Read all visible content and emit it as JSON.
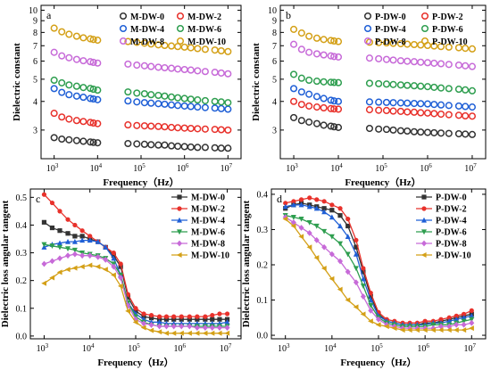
{
  "figure": {
    "panels": [
      "a",
      "b",
      "c",
      "d"
    ]
  },
  "chart_data": [
    {
      "panel": "a",
      "type": "scatter",
      "xlabel": "Frequency（Hz）",
      "ylabel": "Dielectric constant",
      "xscale": "log",
      "yscale": "log",
      "xlim": [
        500,
        20000000
      ],
      "ylim": [
        2.25,
        10.5
      ],
      "xticks": [
        "10^3",
        "10^4",
        "10^5",
        "10^6",
        "10^7"
      ],
      "yticks": [
        3,
        4,
        5,
        6,
        7,
        8,
        9,
        10
      ],
      "legend": {
        "placement": "top-right",
        "columns": 2
      },
      "x": [
        1000,
        1500,
        2200,
        3300,
        4700,
        6800,
        8000,
        10000,
        50000,
        80000,
        120000,
        170000,
        250000,
        350000,
        500000,
        700000,
        1000000,
        1400000,
        2000000,
        3000000,
        5000000,
        7000000,
        10000000
      ],
      "series": [
        {
          "name": "M-DW-0",
          "color": "#333333",
          "values": [
            2.78,
            2.74,
            2.72,
            2.7,
            2.68,
            2.66,
            2.65,
            2.64,
            2.62,
            2.61,
            2.6,
            2.59,
            2.58,
            2.58,
            2.56,
            2.55,
            2.54,
            2.53,
            2.52,
            2.52,
            2.51,
            2.5,
            2.5
          ]
        },
        {
          "name": "M-DW-2",
          "color": "#e8312b",
          "values": [
            3.55,
            3.42,
            3.35,
            3.3,
            3.27,
            3.24,
            3.22,
            3.2,
            3.16,
            3.14,
            3.13,
            3.12,
            3.11,
            3.1,
            3.08,
            3.07,
            3.06,
            3.05,
            3.04,
            3.03,
            3.02,
            3.01,
            3.0
          ]
        },
        {
          "name": "M-DW-4",
          "color": "#1f5fd6",
          "values": [
            4.55,
            4.38,
            4.28,
            4.22,
            4.17,
            4.12,
            4.1,
            4.07,
            4.02,
            3.98,
            3.95,
            3.93,
            3.91,
            3.89,
            3.86,
            3.84,
            3.82,
            3.8,
            3.78,
            3.76,
            3.74,
            3.72,
            3.7
          ]
        },
        {
          "name": "M-DW-6",
          "color": "#2e9e4f",
          "values": [
            4.95,
            4.82,
            4.72,
            4.66,
            4.6,
            4.56,
            4.52,
            4.48,
            4.4,
            4.35,
            4.32,
            4.28,
            4.25,
            4.22,
            4.18,
            4.15,
            4.12,
            4.09,
            4.06,
            4.03,
            4.0,
            3.98,
            3.95
          ]
        },
        {
          "name": "M-DW-8",
          "color": "#c76ad8",
          "values": [
            6.55,
            6.32,
            6.2,
            6.1,
            6.02,
            5.96,
            5.92,
            5.88,
            5.82,
            5.76,
            5.72,
            5.68,
            5.64,
            5.61,
            5.58,
            5.54,
            5.51,
            5.48,
            5.44,
            5.4,
            5.36,
            5.32,
            5.28
          ]
        },
        {
          "name": "M-DW-10",
          "color": "#d4a017",
          "values": [
            8.35,
            8.05,
            7.85,
            7.7,
            7.58,
            7.5,
            7.45,
            7.4,
            7.3,
            7.24,
            7.18,
            7.12,
            7.06,
            7.02,
            6.98,
            6.94,
            6.9,
            6.86,
            6.8,
            6.75,
            6.7,
            6.65,
            6.6
          ]
        }
      ]
    },
    {
      "panel": "b",
      "type": "scatter",
      "xlabel": "Frequency（Hz）",
      "ylabel": "Dielectric constant",
      "xscale": "log",
      "yscale": "log",
      "xlim": [
        500,
        20000000
      ],
      "ylim": [
        2.25,
        10.5
      ],
      "xticks": [
        "10^3",
        "10^4",
        "10^5",
        "10^6",
        "10^7"
      ],
      "yticks": [
        3,
        4,
        5,
        6,
        7,
        8,
        9,
        10
      ],
      "legend": {
        "placement": "top-right",
        "columns": 2
      },
      "x": [
        1000,
        1500,
        2200,
        3300,
        4700,
        6800,
        8000,
        10000,
        50000,
        80000,
        120000,
        170000,
        250000,
        350000,
        500000,
        700000,
        1000000,
        1400000,
        2000000,
        3000000,
        5000000,
        7000000,
        10000000
      ],
      "series": [
        {
          "name": "P-DW-0",
          "color": "#333333",
          "values": [
            3.4,
            3.3,
            3.25,
            3.2,
            3.15,
            3.12,
            3.1,
            3.08,
            3.05,
            3.03,
            3.02,
            3.0,
            2.98,
            2.97,
            2.95,
            2.94,
            2.93,
            2.92,
            2.91,
            2.9,
            2.89,
            2.88,
            2.87
          ]
        },
        {
          "name": "P-DW-2",
          "color": "#e8312b",
          "values": [
            4.0,
            3.88,
            3.82,
            3.78,
            3.75,
            3.72,
            3.71,
            3.7,
            3.68,
            3.66,
            3.65,
            3.63,
            3.62,
            3.6,
            3.59,
            3.57,
            3.56,
            3.54,
            3.52,
            3.5,
            3.48,
            3.46,
            3.45
          ]
        },
        {
          "name": "P-DW-4",
          "color": "#1f5fd6",
          "values": [
            4.55,
            4.4,
            4.3,
            4.2,
            4.12,
            4.05,
            4.02,
            4.0,
            3.98,
            3.97,
            3.96,
            3.95,
            3.94,
            3.93,
            3.92,
            3.91,
            3.9,
            3.88,
            3.86,
            3.84,
            3.82,
            3.8,
            3.78
          ]
        },
        {
          "name": "P-DW-6",
          "color": "#2e9e4f",
          "values": [
            5.25,
            5.05,
            4.95,
            4.9,
            4.87,
            4.85,
            4.84,
            4.83,
            4.8,
            4.78,
            4.76,
            4.74,
            4.72,
            4.7,
            4.68,
            4.66,
            4.64,
            4.61,
            4.58,
            4.55,
            4.52,
            4.49,
            4.45
          ]
        },
        {
          "name": "P-DW-8",
          "color": "#c76ad8",
          "values": [
            7.1,
            6.75,
            6.55,
            6.45,
            6.38,
            6.32,
            6.28,
            6.25,
            6.18,
            6.14,
            6.1,
            6.06,
            6.02,
            5.99,
            5.96,
            5.93,
            5.9,
            5.87,
            5.84,
            5.8,
            5.76,
            5.72,
            5.68
          ]
        },
        {
          "name": "P-DW-10",
          "color": "#d4a017",
          "values": [
            8.25,
            7.95,
            7.7,
            7.55,
            7.45,
            7.38,
            7.34,
            7.3,
            7.25,
            7.22,
            7.2,
            7.17,
            7.14,
            7.11,
            7.08,
            7.05,
            7.02,
            6.98,
            6.94,
            6.9,
            6.86,
            6.82,
            6.78
          ]
        }
      ]
    },
    {
      "panel": "c",
      "type": "line",
      "xlabel": "Frequency（Hz）",
      "ylabel": "Dielectric loss angular tangent",
      "xscale": "log",
      "xlim": [
        500,
        20000000
      ],
      "ylim": [
        -0.01,
        0.53
      ],
      "xticks": [
        "10^3",
        "10^4",
        "10^5",
        "10^6",
        "10^7"
      ],
      "yticks": [
        0.0,
        0.1,
        0.2,
        0.3,
        0.4,
        0.5
      ],
      "legend": {
        "placement": "top-right",
        "columns": 1
      },
      "x": [
        1000,
        1500,
        2200,
        3300,
        4700,
        6800,
        10000,
        15000,
        22000,
        33000,
        47000,
        68000,
        100000,
        150000,
        220000,
        330000,
        470000,
        680000,
        1000000,
        1500000,
        2200000,
        3300000,
        4700000,
        6800000,
        10000000
      ],
      "series": [
        {
          "name": "M-DW-0",
          "color": "#333333",
          "marker": "square",
          "values": [
            0.41,
            0.39,
            0.38,
            0.37,
            0.36,
            0.36,
            0.35,
            0.34,
            0.32,
            0.29,
            0.25,
            0.14,
            0.09,
            0.07,
            0.065,
            0.06,
            0.06,
            0.06,
            0.06,
            0.06,
            0.06,
            0.06,
            0.06,
            0.06,
            0.06
          ]
        },
        {
          "name": "M-DW-2",
          "color": "#e8312b",
          "marker": "circle",
          "values": [
            0.51,
            0.48,
            0.45,
            0.42,
            0.4,
            0.38,
            0.36,
            0.34,
            0.32,
            0.3,
            0.26,
            0.15,
            0.1,
            0.08,
            0.075,
            0.07,
            0.07,
            0.07,
            0.07,
            0.07,
            0.07,
            0.07,
            0.075,
            0.08,
            0.08
          ]
        },
        {
          "name": "M-DW-4",
          "color": "#1f5fd6",
          "marker": "triangle",
          "values": [
            0.32,
            0.33,
            0.335,
            0.34,
            0.34,
            0.345,
            0.345,
            0.34,
            0.32,
            0.28,
            0.22,
            0.12,
            0.08,
            0.06,
            0.05,
            0.05,
            0.045,
            0.045,
            0.045,
            0.045,
            0.045,
            0.045,
            0.045,
            0.045,
            0.05
          ]
        },
        {
          "name": "M-DW-6",
          "color": "#2e9e4f",
          "marker": "triangle-down",
          "values": [
            0.33,
            0.325,
            0.32,
            0.315,
            0.31,
            0.3,
            0.295,
            0.29,
            0.28,
            0.26,
            0.22,
            0.12,
            0.07,
            0.05,
            0.04,
            0.035,
            0.035,
            0.035,
            0.035,
            0.035,
            0.035,
            0.035,
            0.035,
            0.035,
            0.035
          ]
        },
        {
          "name": "M-DW-8",
          "color": "#c76ad8",
          "marker": "diamond",
          "values": [
            0.26,
            0.27,
            0.28,
            0.29,
            0.295,
            0.29,
            0.29,
            0.285,
            0.275,
            0.25,
            0.21,
            0.11,
            0.06,
            0.045,
            0.04,
            0.035,
            0.035,
            0.035,
            0.035,
            0.035,
            0.03,
            0.03,
            0.03,
            0.03,
            0.03
          ]
        },
        {
          "name": "M-DW-10",
          "color": "#d4a017",
          "marker": "triangle-left",
          "values": [
            0.19,
            0.21,
            0.23,
            0.24,
            0.245,
            0.25,
            0.255,
            0.25,
            0.24,
            0.22,
            0.18,
            0.09,
            0.05,
            0.03,
            0.02,
            0.015,
            0.01,
            0.01,
            0.01,
            0.01,
            0.01,
            0.01,
            0.01,
            0.01,
            0.01
          ]
        }
      ]
    },
    {
      "panel": "d",
      "type": "line",
      "xlabel": "Frequency（Hz）",
      "ylabel": "Dielectric loss angular tangent",
      "xscale": "log",
      "xlim": [
        500,
        20000000
      ],
      "ylim": [
        -0.01,
        0.415
      ],
      "xticks": [
        "10^3",
        "10^4",
        "10^5",
        "10^6",
        "10^7"
      ],
      "yticks": [
        0.0,
        0.1,
        0.2,
        0.3,
        0.4
      ],
      "legend": {
        "placement": "top-right",
        "columns": 1
      },
      "x": [
        1000,
        1500,
        2200,
        3300,
        4700,
        6800,
        10000,
        15000,
        22000,
        33000,
        47000,
        68000,
        100000,
        150000,
        220000,
        330000,
        470000,
        680000,
        1000000,
        1500000,
        2200000,
        3300000,
        4700000,
        6800000,
        10000000
      ],
      "series": [
        {
          "name": "P-DW-0",
          "color": "#333333",
          "marker": "square",
          "values": [
            0.36,
            0.37,
            0.375,
            0.37,
            0.365,
            0.36,
            0.355,
            0.34,
            0.31,
            0.25,
            0.18,
            0.11,
            0.06,
            0.04,
            0.035,
            0.03,
            0.03,
            0.03,
            0.035,
            0.035,
            0.04,
            0.045,
            0.05,
            0.055,
            0.06
          ]
        },
        {
          "name": "P-DW-2",
          "color": "#e8312b",
          "marker": "circle",
          "values": [
            0.375,
            0.38,
            0.385,
            0.39,
            0.385,
            0.38,
            0.37,
            0.36,
            0.33,
            0.27,
            0.19,
            0.12,
            0.065,
            0.045,
            0.04,
            0.035,
            0.035,
            0.035,
            0.04,
            0.04,
            0.045,
            0.05,
            0.055,
            0.06,
            0.07
          ]
        },
        {
          "name": "P-DW-4",
          "color": "#1f5fd6",
          "marker": "triangle",
          "values": [
            0.365,
            0.37,
            0.37,
            0.365,
            0.36,
            0.35,
            0.335,
            0.31,
            0.28,
            0.23,
            0.16,
            0.1,
            0.055,
            0.04,
            0.035,
            0.03,
            0.03,
            0.03,
            0.03,
            0.035,
            0.035,
            0.04,
            0.045,
            0.05,
            0.055
          ]
        },
        {
          "name": "P-DW-6",
          "color": "#2e9e4f",
          "marker": "triangle-down",
          "values": [
            0.34,
            0.335,
            0.33,
            0.32,
            0.31,
            0.295,
            0.28,
            0.26,
            0.23,
            0.19,
            0.14,
            0.085,
            0.05,
            0.035,
            0.03,
            0.025,
            0.025,
            0.025,
            0.025,
            0.03,
            0.03,
            0.03,
            0.035,
            0.04,
            0.045
          ]
        },
        {
          "name": "P-DW-8",
          "color": "#c76ad8",
          "marker": "diamond",
          "values": [
            0.335,
            0.32,
            0.305,
            0.29,
            0.27,
            0.25,
            0.23,
            0.21,
            0.18,
            0.15,
            0.11,
            0.07,
            0.045,
            0.03,
            0.025,
            0.02,
            0.02,
            0.02,
            0.02,
            0.02,
            0.025,
            0.025,
            0.03,
            0.03,
            0.035
          ]
        },
        {
          "name": "P-DW-10",
          "color": "#d4a017",
          "marker": "triangle-left",
          "values": [
            0.33,
            0.31,
            0.28,
            0.25,
            0.22,
            0.19,
            0.16,
            0.13,
            0.1,
            0.08,
            0.06,
            0.04,
            0.03,
            0.025,
            0.02,
            0.015,
            0.015,
            0.015,
            0.015,
            0.015,
            0.015,
            0.015,
            0.015,
            0.015,
            0.02
          ]
        }
      ]
    }
  ]
}
